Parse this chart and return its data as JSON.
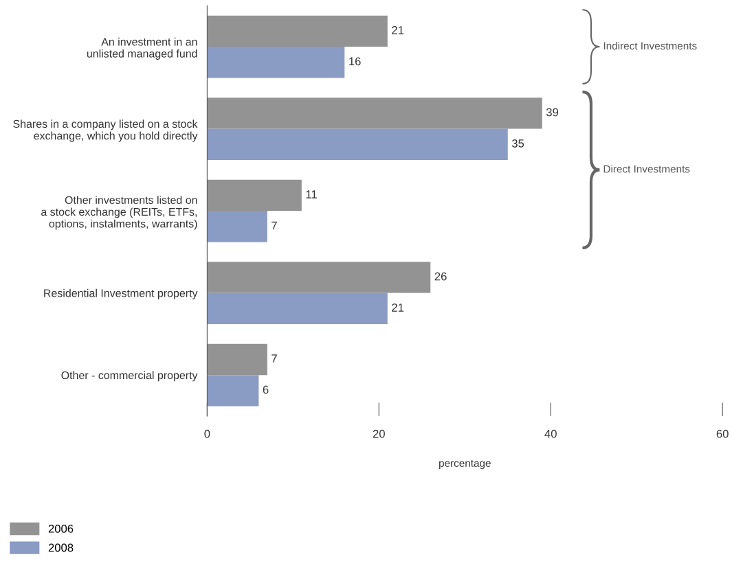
{
  "chart_data": {
    "type": "bar",
    "orientation": "horizontal",
    "categories": [
      "An investment in an\nunlisted managed fund",
      "Shares in a company listed on a stock\nexchange, which you hold directly",
      "Other investments listed on\na stock exchange (REITs, ETFs,\noptions, instalments, warrants)",
      "Residential Investment property",
      "Other - commercial property"
    ],
    "series": [
      {
        "name": "2006",
        "color": "#939393",
        "values": [
          21,
          39,
          11,
          26,
          7
        ]
      },
      {
        "name": "2008",
        "color": "#8a9bc4",
        "values": [
          16,
          35,
          7,
          21,
          6
        ]
      }
    ],
    "xlabel": "percentage",
    "xlim": [
      0,
      60
    ],
    "xticks": [
      0,
      20,
      40,
      60
    ],
    "data_labels": true,
    "grid": false,
    "legend": "bottom left",
    "annotations": [
      "Indirect Investments",
      "Direct Investments"
    ]
  }
}
